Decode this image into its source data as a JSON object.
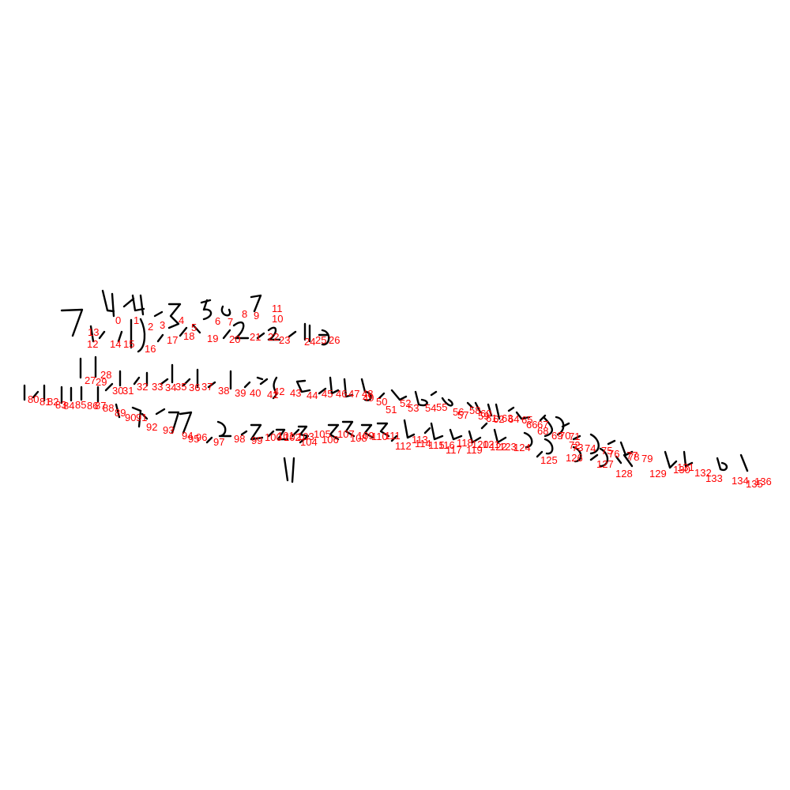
{
  "ink_color": "#000000",
  "label_color": "#ff0000",
  "labels": [
    "0",
    "1",
    "2",
    "3",
    "4",
    "5",
    "6",
    "7",
    "8",
    "9",
    "10",
    "11",
    "12",
    "13",
    "14",
    "15",
    "16",
    "17",
    "18",
    "19",
    "20",
    "21",
    "22",
    "23",
    "24",
    "25",
    "26",
    "27",
    "28",
    "29",
    "30",
    "31",
    "32",
    "33",
    "34",
    "35",
    "36",
    "37",
    "38",
    "39",
    "40",
    "41",
    "42",
    "43",
    "44",
    "45",
    "46",
    "47",
    "48",
    "49",
    "50",
    "51",
    "52",
    "53",
    "54",
    "55",
    "56",
    "57",
    "58",
    "59",
    "60",
    "61",
    "62",
    "63",
    "64",
    "65",
    "66",
    "67",
    "68",
    "69",
    "70",
    "71",
    "72",
    "73",
    "74",
    "75",
    "76",
    "77",
    "78",
    "79",
    "80",
    "81",
    "82",
    "83",
    "84",
    "85",
    "86",
    "87",
    "88",
    "89",
    "90",
    "91",
    "92",
    "93",
    "94",
    "95",
    "96",
    "97",
    "98",
    "99",
    "100",
    "101",
    "102",
    "103",
    "104",
    "105",
    "106",
    "107",
    "108",
    "109",
    "110",
    "111",
    "112",
    "113",
    "114",
    "115",
    "116",
    "117",
    "118",
    "119",
    "120",
    "121",
    "122",
    "123",
    "124",
    "125",
    "126",
    "127",
    "128",
    "129",
    "130",
    "131",
    "132",
    "133",
    "134",
    "135",
    "136"
  ]
}
